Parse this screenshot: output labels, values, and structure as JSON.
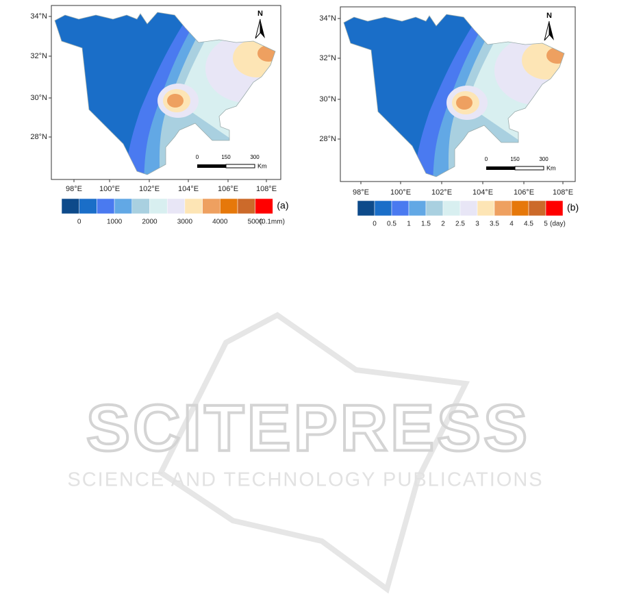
{
  "figures": [
    {
      "lat_labels": [
        "34°N",
        "32°N",
        "30°N",
        "28°N"
      ],
      "lon_labels": [
        "98°E",
        "100°E",
        "102°E",
        "104°E",
        "106°E",
        "108°E"
      ],
      "north": "N",
      "scale_labels": [
        "0",
        "150",
        "300"
      ],
      "scale_unit": "Km",
      "colorbar_labels": [
        "0",
        "1000",
        "2000",
        "3000",
        "4000",
        "5000"
      ],
      "colorbar_unit": "(0.1mm)",
      "panel_label": "(a)"
    },
    {
      "lat_labels": [
        "34°N",
        "32°N",
        "30°N",
        "28°N"
      ],
      "lon_labels": [
        "98°E",
        "100°E",
        "102°E",
        "104°E",
        "106°E",
        "108°E"
      ],
      "north": "N",
      "scale_labels": [
        "0",
        "150",
        "300"
      ],
      "scale_unit": "Km",
      "colorbar_labels": [
        "0",
        "0.5",
        "1",
        "1.5",
        "2",
        "2.5",
        "3",
        "3.5",
        "4",
        "4.5",
        "5"
      ],
      "colorbar_unit": "(day)",
      "panel_label": "(b)"
    }
  ],
  "colorbar_colors": [
    "#0d4a8a",
    "#1a6ec8",
    "#4a7af0",
    "#62a8e5",
    "#a9d0e0",
    "#d8eff0",
    "#e8e6f6",
    "#fde5b5",
    "#eea060",
    "#e6780a",
    "#cc6a2a",
    "#ff0000"
  ],
  "watermark": {
    "title": "SCITEPRESS",
    "subtitle": "SCIENCE AND TECHNOLOGY PUBLICATIONS"
  }
}
